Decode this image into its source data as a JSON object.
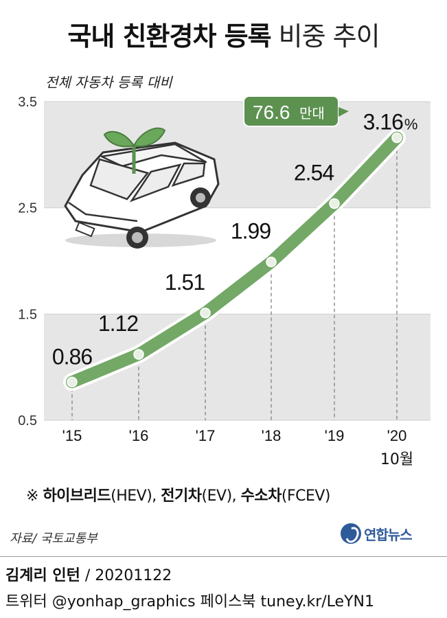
{
  "title": {
    "bold": "국내 친환경차 등록",
    "light": "비중 추이"
  },
  "subtitle": "전체 자동차 등록 대비",
  "note": {
    "mark": "※",
    "bold1": "하이브리드",
    "p1": "(HEV),",
    "bold2": "전기차",
    "p2": "(EV),",
    "bold3": "수소차",
    "p3": "(FCEV)"
  },
  "source": "자료/ 국토교통부",
  "logo": "연합뉴스",
  "credit": {
    "author_bold": "김계리 인턴",
    "author_rest": "/ 20201122",
    "social": "트위터 @yonhap_graphics  페이스북 tuney.kr/LeYN1"
  },
  "colors": {
    "line": "#73a866",
    "band": "#e6e6e6",
    "badge": "#5c9150"
  },
  "chart_data": {
    "type": "line",
    "categories": [
      "'15",
      "'16",
      "'17",
      "'18",
      "'19",
      "'20"
    ],
    "category_sub": [
      "",
      "",
      "",
      "",
      "",
      "10월"
    ],
    "values": [
      0.86,
      1.12,
      1.51,
      1.99,
      2.54,
      3.16
    ],
    "value_labels": [
      "0.86",
      "1.12",
      "1.51",
      "1.99",
      "2.54",
      "3.16"
    ],
    "last_label_unit": "%",
    "yticks": [
      "0.5",
      "1.5",
      "2.5",
      "3.5"
    ],
    "ylim": [
      0.5,
      3.5
    ],
    "annotation": {
      "num": "76.6",
      "unit": "만대"
    }
  }
}
